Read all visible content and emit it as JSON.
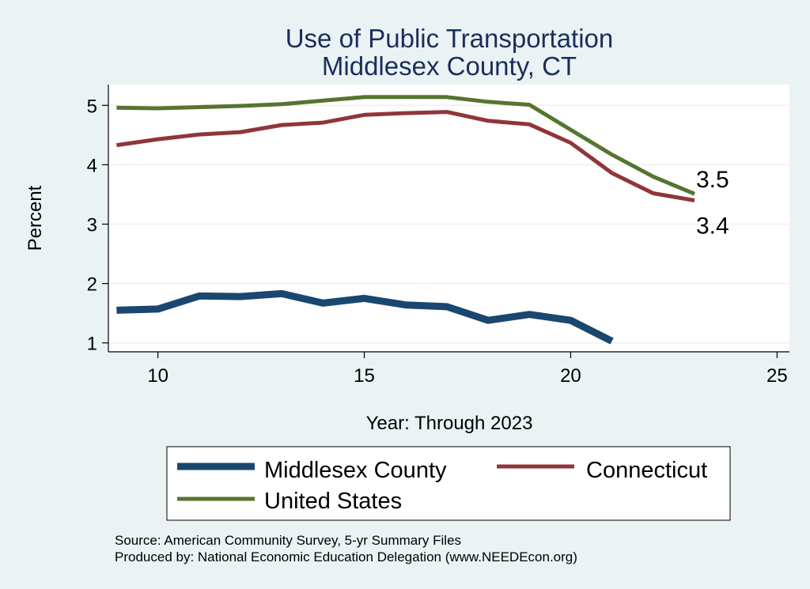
{
  "chart_data": {
    "type": "line",
    "title": [
      "Use of Public Transportation",
      "Middlesex County, CT"
    ],
    "xlabel": "Year: Through 2023",
    "ylabel": "Percent",
    "xlim": [
      8.8,
      25.3
    ],
    "ylim": [
      0.85,
      5.35
    ],
    "xticks": [
      10,
      15,
      20,
      25
    ],
    "yticks": [
      1,
      2,
      3,
      4,
      5
    ],
    "grid": true,
    "series": [
      {
        "name": "Middlesex County",
        "color": "#1a476f",
        "width": 9,
        "x": [
          9,
          10,
          11,
          12,
          13,
          14,
          15,
          16,
          17,
          18,
          19,
          20,
          21
        ],
        "y": [
          1.55,
          1.57,
          1.79,
          1.78,
          1.83,
          1.67,
          1.75,
          1.64,
          1.61,
          1.38,
          1.48,
          1.38,
          1.03
        ]
      },
      {
        "name": "Connecticut",
        "color": "#90353b",
        "width": 5,
        "x": [
          9,
          10,
          11,
          12,
          13,
          14,
          15,
          16,
          17,
          18,
          19,
          20,
          21,
          22,
          23
        ],
        "y": [
          4.33,
          4.43,
          4.51,
          4.55,
          4.67,
          4.71,
          4.84,
          4.87,
          4.89,
          4.74,
          4.68,
          4.37,
          3.86,
          3.52,
          3.4
        ]
      },
      {
        "name": "United States",
        "color": "#55752f",
        "width": 5,
        "x": [
          9,
          10,
          11,
          12,
          13,
          14,
          15,
          16,
          17,
          18,
          19,
          20,
          21,
          22,
          23
        ],
        "y": [
          4.96,
          4.95,
          4.97,
          4.99,
          5.02,
          5.08,
          5.14,
          5.14,
          5.14,
          5.06,
          5.01,
          4.59,
          4.17,
          3.8,
          3.51
        ]
      }
    ],
    "end_labels": [
      {
        "series": "United States",
        "x": 23,
        "y": 3.51,
        "text": "3.5",
        "position": "above-right"
      },
      {
        "series": "Connecticut",
        "x": 23,
        "y": 3.4,
        "text": "3.4",
        "position": "below-right"
      }
    ],
    "legend": {
      "placement": "bottom",
      "columns": 2,
      "entries": [
        "Middlesex County",
        "Connecticut",
        "United States"
      ]
    }
  },
  "notes": {
    "source": "Source: American Community Survey, 5-yr Summary Files",
    "produced_by": "Produced by: National Economic Education Delegation (www.NEEDEcon.org)"
  }
}
